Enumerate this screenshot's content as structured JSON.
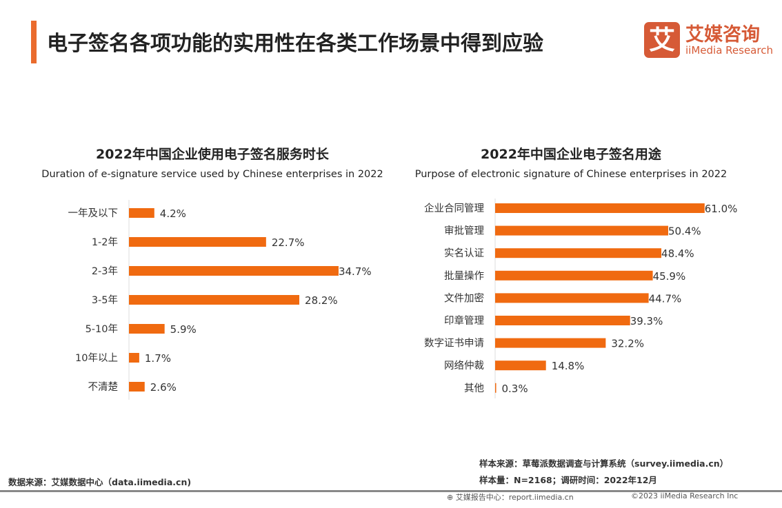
{
  "header": {
    "title": "电子签名各项功能的实用性在各类工作场景中得到应验",
    "accent_color": "#ea6b2d"
  },
  "logo": {
    "mark": "艾",
    "cn": "艾媒咨询",
    "en": "iiMedia Research"
  },
  "chart_data": [
    {
      "type": "bar",
      "orientation": "horizontal",
      "title": "2022年中国企业使用电子签名服务时长",
      "subtitle": "Duration of e-signature service used by Chinese enterprises in 2022",
      "categories": [
        "一年及以下",
        "1-2年",
        "2-3年",
        "3-5年",
        "5-10年",
        "10年以上",
        "不清楚"
      ],
      "values": [
        4.2,
        22.7,
        34.7,
        28.2,
        5.9,
        1.7,
        2.6
      ],
      "labels": [
        "4.2%",
        "22.7%",
        "34.7%",
        "28.2%",
        "5.9%",
        "1.7%",
        "2.6%"
      ],
      "unit": "%",
      "color": "#f06a10",
      "grid": false
    },
    {
      "type": "bar",
      "orientation": "horizontal",
      "title": "2022年中国企业电子签名用途",
      "subtitle": "Purpose of electronic signature of Chinese enterprises in 2022",
      "categories": [
        "企业合同管理",
        "审批管理",
        "实名认证",
        "批量操作",
        "文件加密",
        "印章管理",
        "数字证书申请",
        "网络仲裁",
        "其他"
      ],
      "values": [
        61.0,
        50.4,
        48.4,
        45.9,
        44.7,
        39.3,
        32.2,
        14.8,
        0.3
      ],
      "labels": [
        "61.0%",
        "50.4%",
        "48.4%",
        "45.9%",
        "44.7%",
        "39.3%",
        "32.2%",
        "14.8%",
        "0.3%"
      ],
      "unit": "%",
      "color": "#f06a10",
      "grid": false
    }
  ],
  "footer": {
    "source": "数据来源：艾媒数据中心（data.iimedia.cn)",
    "sample_source": "样本来源：草莓派数据调查与计算系统（survey.iimedia.cn）",
    "sample_size": "样本量：N=2168；调研时间：2022年12月",
    "report_center": "艾媒报告中心：report.iimedia.cn",
    "copyright": "©2023  iiMedia Research  Inc"
  }
}
